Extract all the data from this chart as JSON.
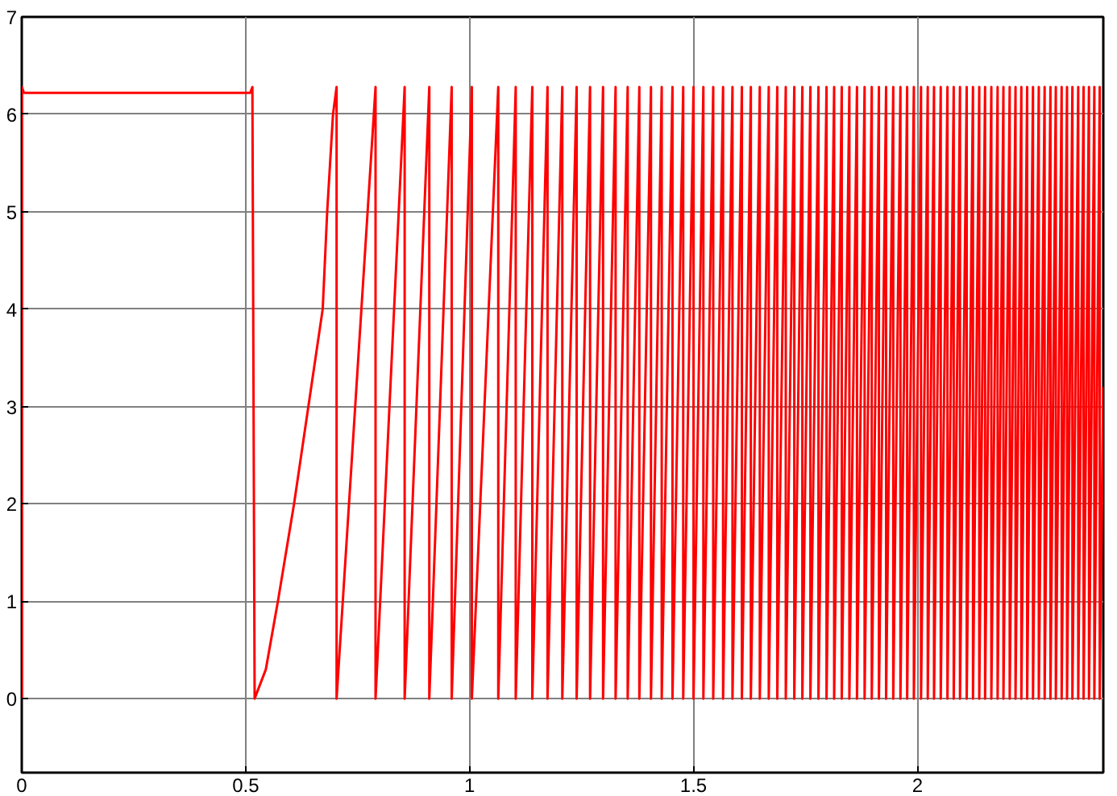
{
  "chart_data": {
    "type": "line",
    "xlim": [
      0,
      2.415
    ],
    "ylim": [
      -0.76,
      7
    ],
    "xticks": [
      0,
      0.5,
      1,
      1.5,
      2
    ],
    "yticks": [
      0,
      1,
      2,
      3,
      4,
      5,
      6,
      7
    ],
    "grid": true,
    "line_style": "solid",
    "series": [
      {
        "color": "#ff0000",
        "x": [
          0,
          0,
          0.005,
          0.51,
          0.515,
          0.52,
          0.545,
          0.572,
          0.608,
          0.64,
          0.672,
          0.682,
          0.695,
          0.703,
          0.703,
          0.79,
          0.79,
          0.855,
          0.855,
          0.91,
          0.91,
          0.96,
          0.96,
          1.005,
          1.005,
          1.064,
          1.064,
          1.103,
          1.103,
          1.14,
          1.14,
          1.174,
          1.174,
          1.207,
          1.207,
          1.239,
          1.239,
          1.269,
          1.269,
          1.298,
          1.298,
          1.326,
          1.326,
          1.353,
          1.353,
          1.379,
          1.379,
          1.405,
          1.405,
          1.429,
          1.429,
          1.453,
          1.453,
          1.477,
          1.477,
          1.5,
          1.5,
          1.522,
          1.522,
          1.544,
          1.544,
          1.566,
          1.566,
          1.587,
          1.587,
          1.608,
          1.608,
          1.628,
          1.628,
          1.648,
          1.648,
          1.668,
          1.668,
          1.687,
          1.687,
          1.706,
          1.706,
          1.725,
          1.725,
          1.743,
          1.743,
          1.761,
          1.761,
          1.779,
          1.779,
          1.797,
          1.797,
          1.814,
          1.814,
          1.831,
          1.831,
          1.848,
          1.848,
          1.865,
          1.865,
          1.882,
          1.882,
          1.898,
          1.898,
          1.914,
          1.914,
          1.93,
          1.93,
          1.946,
          1.946,
          1.962,
          1.962,
          1.977,
          1.977,
          1.992,
          1.992,
          2.008,
          2.008,
          2.023,
          2.023,
          2.037,
          2.037,
          2.052,
          2.052,
          2.067,
          2.067,
          2.081,
          2.081,
          2.095,
          2.095,
          2.11,
          2.11,
          2.124,
          2.124,
          2.138,
          2.138,
          2.151,
          2.151,
          2.165,
          2.165,
          2.179,
          2.179,
          2.192,
          2.192,
          2.206,
          2.206,
          2.219,
          2.219,
          2.232,
          2.232,
          2.245,
          2.245,
          2.258,
          2.258,
          2.271,
          2.271,
          2.284,
          2.284,
          2.297,
          2.297,
          2.309,
          2.309,
          2.322,
          2.322,
          2.334,
          2.334,
          2.346,
          2.346,
          2.359,
          2.359,
          2.371,
          2.371,
          2.383,
          2.383,
          2.395,
          2.395,
          2.407,
          2.407,
          2.415
        ],
        "values": [
          0,
          6.28,
          6.22,
          6.22,
          6.28,
          0,
          0.3,
          1,
          2,
          3,
          4,
          5,
          6,
          6.28,
          0,
          6.28,
          0,
          6.28,
          0,
          6.28,
          0,
          6.28,
          0,
          6.28,
          0,
          6.28,
          0,
          6.28,
          0,
          6.28,
          0,
          6.28,
          0,
          6.28,
          0,
          6.28,
          0,
          6.28,
          0,
          6.28,
          0,
          6.28,
          0,
          6.28,
          0,
          6.28,
          0,
          6.28,
          0,
          6.28,
          0,
          6.28,
          0,
          6.28,
          0,
          6.28,
          0,
          6.28,
          0,
          6.28,
          0,
          6.28,
          0,
          6.28,
          0,
          6.28,
          0,
          6.28,
          0,
          6.28,
          0,
          6.28,
          0,
          6.28,
          0,
          6.28,
          0,
          6.28,
          0,
          6.28,
          0,
          6.28,
          0,
          6.28,
          0,
          6.28,
          0,
          6.28,
          0,
          6.28,
          0,
          6.28,
          0,
          6.28,
          0,
          6.28,
          0,
          6.28,
          0,
          6.28,
          0,
          6.28,
          0,
          6.28,
          0,
          6.28,
          0,
          6.28,
          0,
          6.28,
          0,
          6.28,
          0,
          6.28,
          0,
          6.28,
          0,
          6.28,
          0,
          6.28,
          0,
          6.28,
          0,
          6.28,
          0,
          6.28,
          0,
          6.28,
          0,
          6.28,
          0,
          6.28,
          0,
          6.28,
          0,
          6.28,
          0,
          6.28,
          0,
          6.28,
          0,
          6.28,
          0,
          6.28,
          0,
          6.28,
          0,
          6.28,
          0,
          6.28,
          0,
          6.28,
          0,
          6.28,
          0,
          6.28,
          0,
          6.28,
          0,
          6.28,
          0,
          6.28,
          0,
          6.28,
          0,
          6.28,
          0,
          6.28,
          0,
          6.28,
          0,
          6.28,
          0,
          3.2
        ]
      }
    ]
  }
}
